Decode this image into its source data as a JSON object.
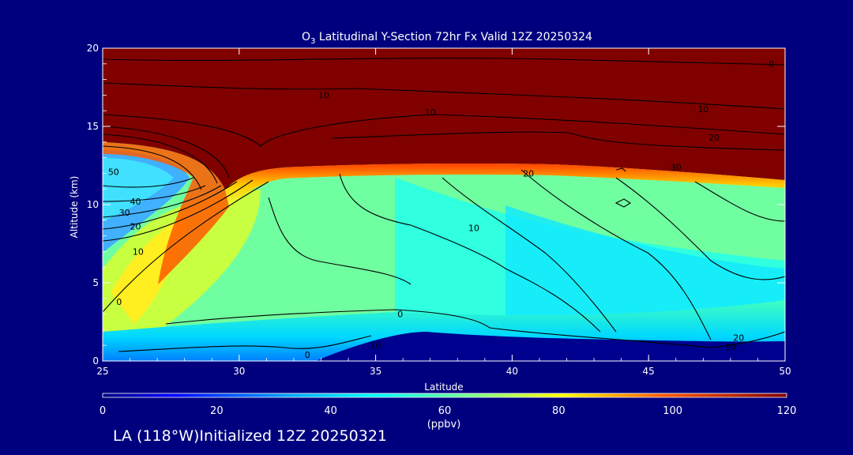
{
  "chart_data": {
    "type": "heatmap",
    "title": {
      "prefix": "O",
      "subscript": "3",
      "rest": " Latitudinal Y-Section 72hr  Fx Valid 12Z 20250324"
    },
    "xlabel": "Latitude",
    "ylabel": "Altitude (km)",
    "xlim": [
      25,
      50
    ],
    "ylim": [
      0,
      20
    ],
    "xticks": [
      "25",
      "30",
      "35",
      "40",
      "45",
      "50"
    ],
    "yticks": [
      "0",
      "5",
      "10",
      "15",
      "20"
    ],
    "colorbar": {
      "ticks": [
        "0",
        "20",
        "40",
        "60",
        "80",
        "100",
        "120"
      ],
      "range": [
        0,
        120
      ],
      "unit": "(ppbv)"
    },
    "contour_labels": [
      {
        "text": "0",
        "lat": 49.5,
        "alt": 19.0
      },
      {
        "text": "10",
        "lat": 33.1,
        "alt": 17.0
      },
      {
        "text": "10",
        "lat": 37.0,
        "alt": 15.9
      },
      {
        "text": "10",
        "lat": 47.0,
        "alt": 16.1
      },
      {
        "text": "20",
        "lat": 47.4,
        "alt": 14.3
      },
      {
        "text": "20",
        "lat": 40.6,
        "alt": 12.0
      },
      {
        "text": "30",
        "lat": 46.0,
        "alt": 12.4
      },
      {
        "text": "50",
        "lat": 25.4,
        "alt": 12.1
      },
      {
        "text": "40",
        "lat": 26.2,
        "alt": 10.2
      },
      {
        "text": "30",
        "lat": 25.8,
        "alt": 9.5
      },
      {
        "text": "20",
        "lat": 26.2,
        "alt": 8.6
      },
      {
        "text": "10",
        "lat": 26.3,
        "alt": 7.0
      },
      {
        "text": "10",
        "lat": 38.6,
        "alt": 8.5
      },
      {
        "text": "0",
        "lat": 25.6,
        "alt": 3.8
      },
      {
        "text": "0",
        "lat": 35.9,
        "alt": 3.0
      },
      {
        "text": "10",
        "lat": 35.0,
        "alt": 1.0
      },
      {
        "text": "0",
        "lat": 32.5,
        "alt": 0.4
      },
      {
        "text": "20",
        "lat": 48.3,
        "alt": 1.5
      },
      {
        "text": "10",
        "lat": 48.0,
        "alt": 0.9
      }
    ]
  },
  "footer": "LA (118°W)Initialized 12Z 20250321"
}
